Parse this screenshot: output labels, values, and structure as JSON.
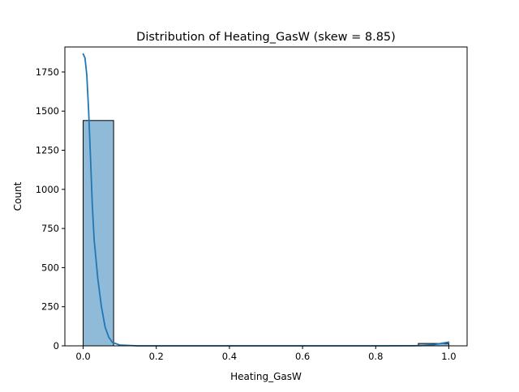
{
  "chart_data": {
    "type": "bar",
    "title": "Distribution of Heating_GasW (skew = 8.85)",
    "xlabel": "Heating_GasW",
    "ylabel": "Count",
    "xlim": [
      -0.05,
      1.05
    ],
    "ylim": [
      0,
      1910
    ],
    "x_ticks": [
      0.0,
      0.2,
      0.4,
      0.6,
      0.8,
      1.0
    ],
    "x_tick_labels": [
      "0.0",
      "0.2",
      "0.4",
      "0.6",
      "0.8",
      "1.0"
    ],
    "y_ticks": [
      0,
      250,
      500,
      750,
      1000,
      1250,
      1500,
      1750
    ],
    "y_tick_labels": [
      "0",
      "250",
      "500",
      "750",
      "1000",
      "1250",
      "1500",
      "1750"
    ],
    "bins": [
      {
        "x_start": 0.0,
        "x_end": 0.0833,
        "count": 1440
      },
      {
        "x_start": 0.0833,
        "x_end": 0.1667,
        "count": 0
      },
      {
        "x_start": 0.1667,
        "x_end": 0.25,
        "count": 0
      },
      {
        "x_start": 0.25,
        "x_end": 0.3333,
        "count": 0
      },
      {
        "x_start": 0.3333,
        "x_end": 0.4167,
        "count": 0
      },
      {
        "x_start": 0.4167,
        "x_end": 0.5,
        "count": 0
      },
      {
        "x_start": 0.5,
        "x_end": 0.5833,
        "count": 0
      },
      {
        "x_start": 0.5833,
        "x_end": 0.6667,
        "count": 0
      },
      {
        "x_start": 0.6667,
        "x_end": 0.75,
        "count": 0
      },
      {
        "x_start": 0.75,
        "x_end": 0.8333,
        "count": 0
      },
      {
        "x_start": 0.8333,
        "x_end": 0.9167,
        "count": 0
      },
      {
        "x_start": 0.9167,
        "x_end": 1.0,
        "count": 15
      }
    ],
    "kde": {
      "x": [
        0.0,
        0.005,
        0.01,
        0.015,
        0.02,
        0.025,
        0.03,
        0.04,
        0.05,
        0.06,
        0.07,
        0.08,
        0.1,
        0.15,
        0.2,
        0.4,
        0.6,
        0.8,
        0.9,
        0.93,
        0.96,
        0.98,
        1.0
      ],
      "y": [
        1865,
        1840,
        1730,
        1500,
        1210,
        900,
        680,
        430,
        250,
        120,
        55,
        22,
        5,
        0,
        0,
        0,
        0,
        0,
        0.5,
        2,
        8,
        16,
        24
      ]
    },
    "bar_color": "#1f77b4",
    "bar_alpha": 0.5,
    "line_color": "#1f77b4",
    "grid": false,
    "legend": false
  }
}
